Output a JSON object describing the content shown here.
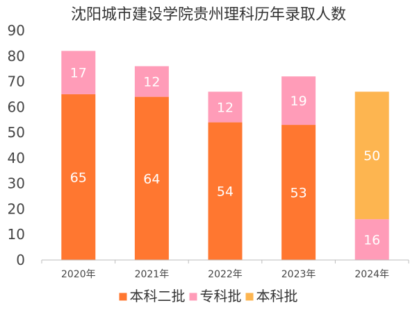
{
  "chart_data": {
    "type": "bar",
    "stacked": true,
    "title": "沈阳城市建设学院贵州理科历年录取人数",
    "categories": [
      "2020年",
      "2021年",
      "2022年",
      "2023年",
      "2024年"
    ],
    "series": [
      {
        "name": "本科二批",
        "color": "#ff7730",
        "values": [
          65,
          64,
          54,
          53,
          null
        ]
      },
      {
        "name": "专科批",
        "color": "#ff9cb8",
        "values": [
          17,
          12,
          12,
          19,
          16
        ]
      },
      {
        "name": "本科批",
        "color": "#fdb550",
        "values": [
          null,
          null,
          null,
          null,
          50
        ]
      }
    ],
    "yticks": [
      "0",
      "10",
      "20",
      "30",
      "40",
      "50",
      "60",
      "70",
      "80",
      "90"
    ],
    "ylim": [
      0,
      90
    ],
    "xlabel": "",
    "ylabel": "",
    "grid": false,
    "legend_position": "bottom"
  }
}
